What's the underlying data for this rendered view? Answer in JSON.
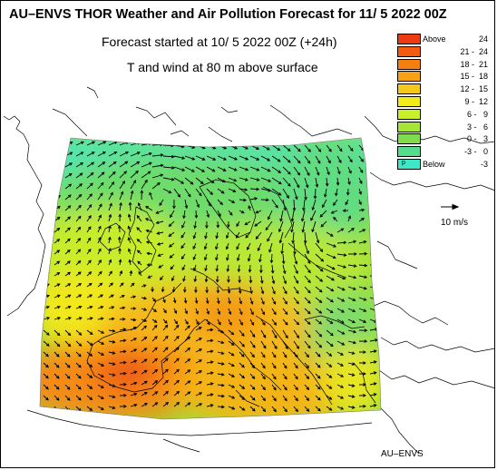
{
  "header": {
    "title": "AU–ENVS THOR Weather and Air Pollution Forecast for 11/ 5 2022  00Z",
    "forecast_start": "Forecast started at 10/ 5 2022  00Z (+24h)",
    "field": "T and wind at 80 m above surface"
  },
  "legend": {
    "items": [
      {
        "word": "Above",
        "range": "24",
        "color": "#ee3a10"
      },
      {
        "word": "",
        "range": "21 -  24",
        "color": "#f45a10"
      },
      {
        "word": "",
        "range": "18 -  21",
        "color": "#f57e10"
      },
      {
        "word": "",
        "range": "15 -  18",
        "color": "#f5a015"
      },
      {
        "word": "",
        "range": "12 -  15",
        "color": "#f5c81c"
      },
      {
        "word": "",
        "range": " 9 -  12",
        "color": "#f2ec1a"
      },
      {
        "word": "",
        "range": " 6 -   9",
        "color": "#c9ee2a"
      },
      {
        "word": "",
        "range": " 3 -   6",
        "color": "#a6e43a"
      },
      {
        "word": "",
        "range": " 0 -   3",
        "color": "#7fdc4c"
      },
      {
        "word": "",
        "range": "-3 -   0",
        "color": "#55dc8c"
      },
      {
        "word": "Below",
        "range": "-3",
        "color": "#3de8c8"
      }
    ],
    "swatch_mark": "p"
  },
  "wind_reference": {
    "label": "10 m/s",
    "speed": 10
  },
  "brand": "AU–ENVS",
  "colors": {
    "coastline": "#000000",
    "arrow": "#000000",
    "background": "#ffffff"
  }
}
